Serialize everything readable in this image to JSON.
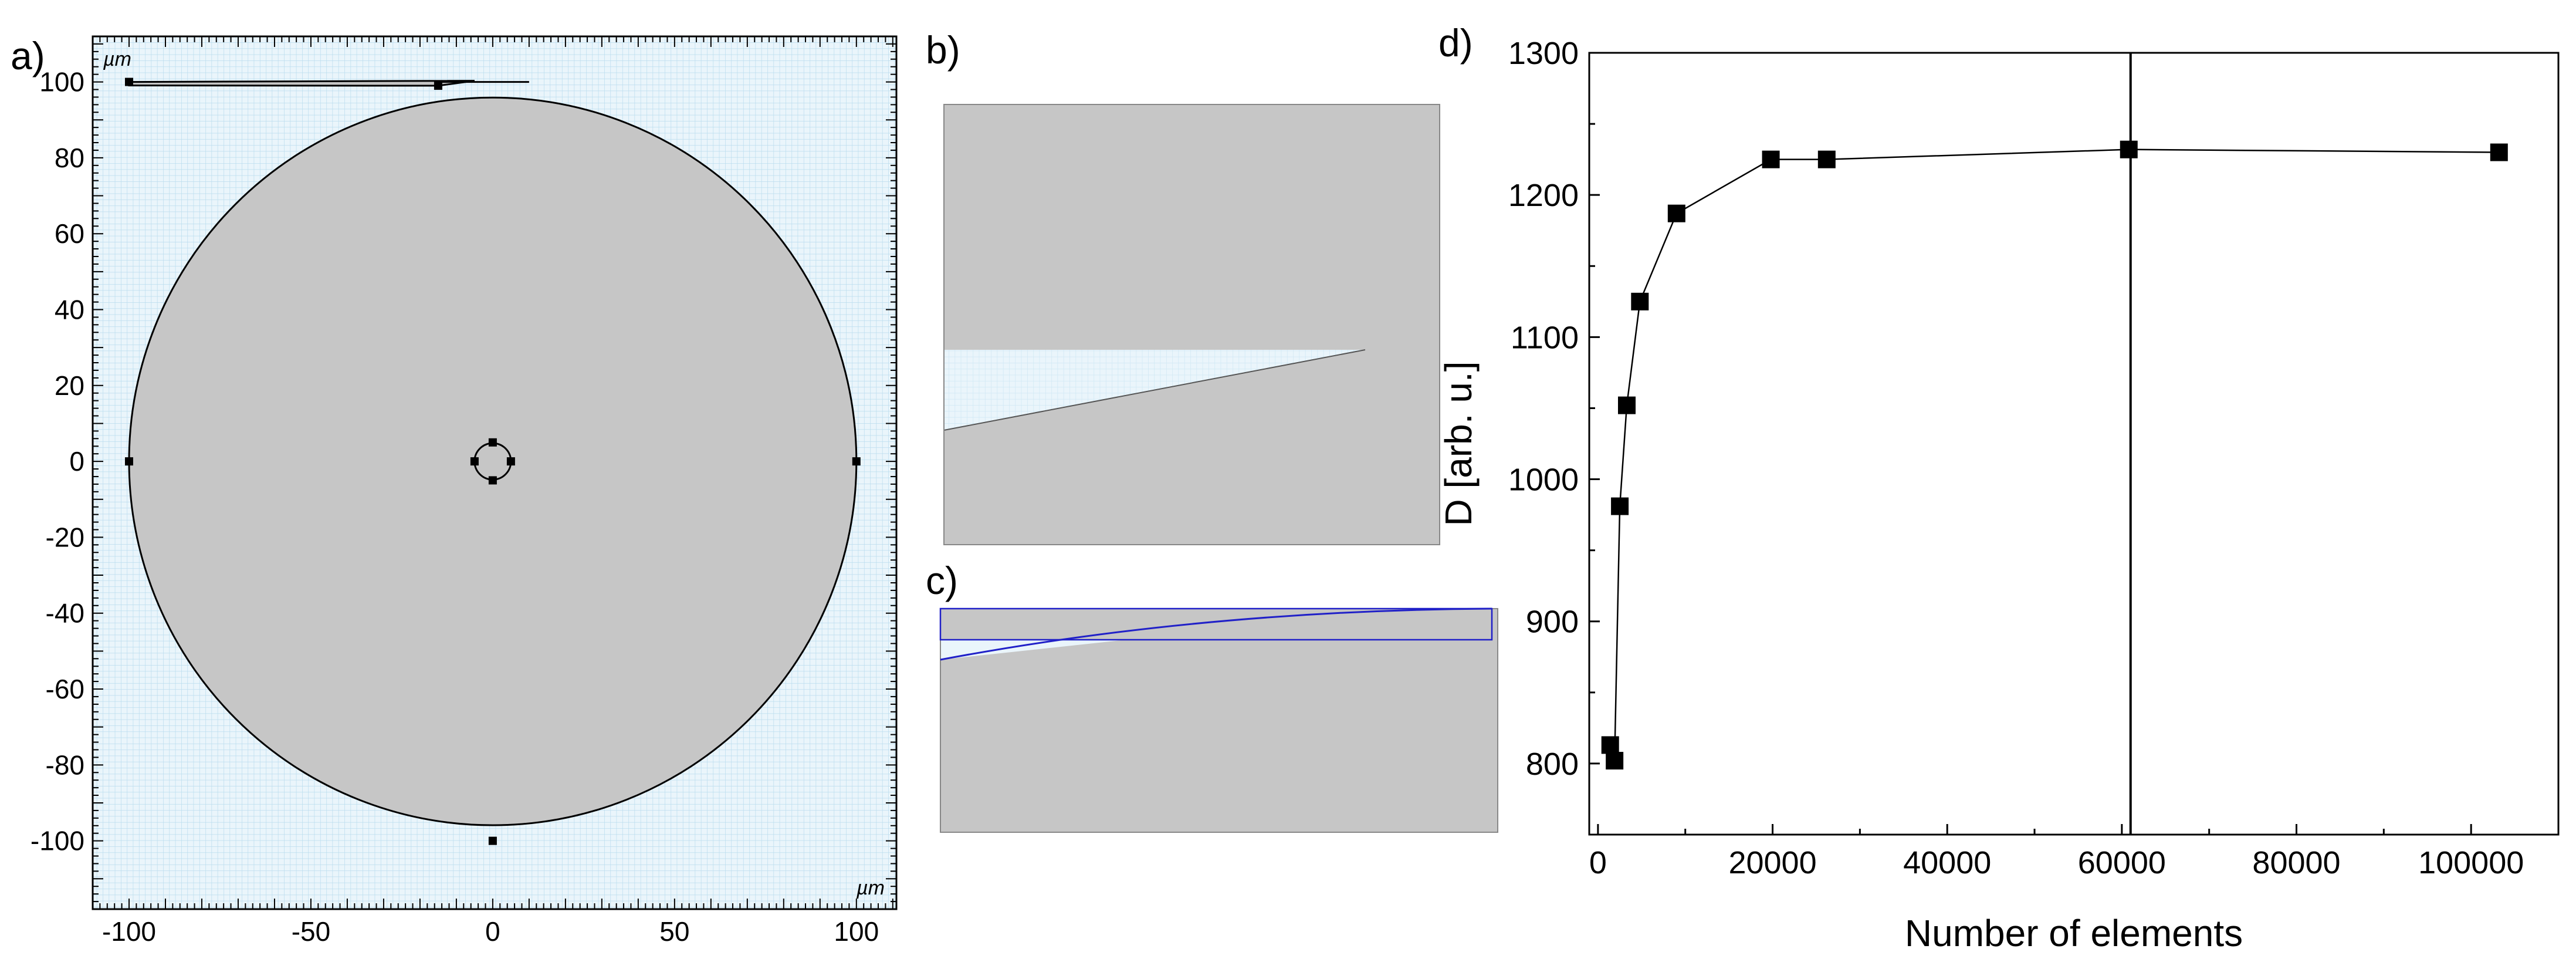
{
  "panel_labels": {
    "a": "a)",
    "b": "b)",
    "c": "c)",
    "d": "d)"
  },
  "colors": {
    "grid": "#b9dcee",
    "grid_bg": "#eaf5fb",
    "domain_fill": "#c6c6c6",
    "boundary": "#000000",
    "mesh_outline": "#2020c8"
  },
  "chart_data": [
    {
      "id": "a",
      "type": "geometry",
      "description": "circular simulation domain with small inner circle and thin top channel on a grid",
      "x_unit": "µm",
      "y_unit": "µm",
      "x_ticks": [
        -100,
        -50,
        0,
        50,
        100
      ],
      "y_ticks": [
        100,
        80,
        60,
        40,
        20,
        0,
        -20,
        -40,
        -60,
        -80,
        -100
      ],
      "x_tick_labels": [
        "-100",
        "-50",
        "0",
        "50",
        "100"
      ],
      "y_tick_labels": [
        "100",
        "80",
        "60",
        "40",
        "20",
        "0",
        "-20",
        "-40",
        "-60",
        "-80",
        "-100"
      ],
      "xlim": [
        -110,
        111
      ],
      "ylim": [
        -118,
        112
      ],
      "circle_radius": 100,
      "inner_circle_radius": 5,
      "channel": {
        "x_start": -100,
        "x_end": -15,
        "y_top": 100,
        "y_bottom": 99
      },
      "vertices": [
        [
          -100,
          100
        ],
        [
          -15,
          99
        ],
        [
          -100,
          0
        ],
        [
          100,
          0
        ],
        [
          0,
          -100
        ],
        [
          0,
          5
        ],
        [
          0,
          -5
        ],
        [
          -5,
          0
        ],
        [
          5,
          0
        ]
      ],
      "grid": true
    },
    {
      "id": "d",
      "type": "line",
      "xlabel": "Number of  elements",
      "ylabel": "D [arb. u.]",
      "xlim": [
        -1000,
        110000
      ],
      "ylim": [
        750,
        1300
      ],
      "x_ticks": [
        0,
        20000,
        40000,
        60000,
        80000,
        100000
      ],
      "y_ticks": [
        800,
        900,
        1000,
        1100,
        1200,
        1300
      ],
      "vline_x": 61000,
      "series": [
        {
          "x": [
            1400,
            1900,
            2500,
            3300,
            4800,
            9000,
            19800,
            26200,
            60800,
            103200
          ],
          "y": [
            813,
            802,
            981,
            1052,
            1125,
            1187,
            1225,
            1225,
            1232,
            1230
          ]
        }
      ]
    }
  ]
}
